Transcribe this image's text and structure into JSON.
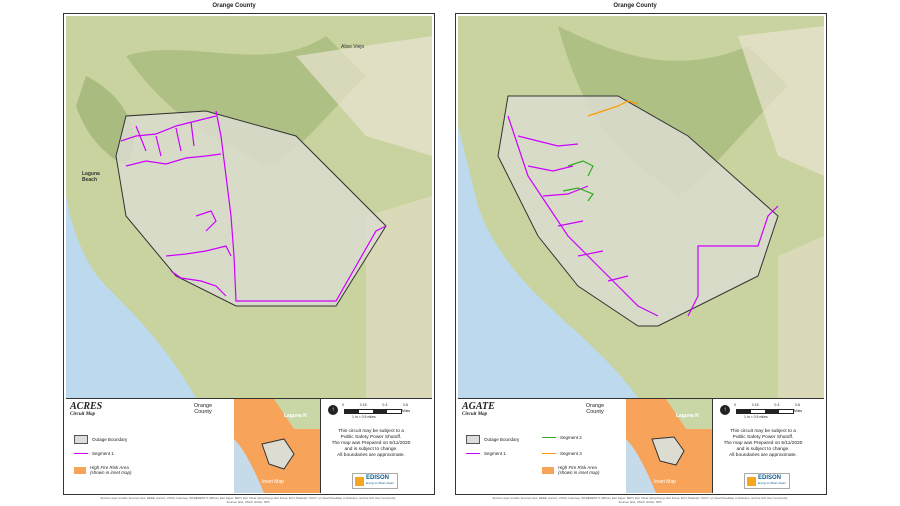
{
  "sheets": [
    {
      "header": "Orange County",
      "circuit": "ACRES",
      "subtitle": "Circuit Map",
      "county": "Orange\nCounty",
      "legend": [
        {
          "type": "box",
          "label": "Outage Boundary"
        },
        {
          "type": "line",
          "label": "Segment 1",
          "color": "#cc00ff"
        },
        {
          "type": "fire",
          "label": "High Fire Risk Area\n(shown in inset map)"
        }
      ],
      "map_labels": [
        "Aliso Viejo",
        "Laguna\nBeach"
      ],
      "inset_label": "Inset Map",
      "inset_town": "Laguna N",
      "scale": {
        "ticks": [
          "0",
          "0.15",
          "0.3",
          "0.6"
        ],
        "text": "1 in = 0.5 miles",
        "unit": "Miles"
      },
      "notice": "This circuit may be subject to a\nPublic Safety Power Shutoff.\nThe map was Prepared on 5/11/2020\nand is subject to change.\nAll boundaries are approximate.",
      "logo": {
        "name": "EDISON",
        "sub": "Energy for What's Ahead"
      },
      "credits": "Service Layer Credits: Sources: Esri, HERE, Garmin, USGS, Intermap, INCREMENT P, NRCan, Esri Japan, METI, Esri China (Hong Kong), Esri Korea, Esri (Thailand), NGCC, (c) OpenStreetMap contributors, and the GIS User Community\nSources: Esri, USGS, NOAA, NPS"
    },
    {
      "header": "Orange County",
      "circuit": "AGATE",
      "subtitle": "Circuit Map",
      "county": "Orange\nCounty",
      "legend": [
        {
          "type": "box",
          "label": "Outage Boundary"
        },
        {
          "type": "line",
          "label": "Segment 1",
          "color": "#cc00ff"
        },
        {
          "type": "line",
          "label": "Segment 2",
          "color": "#33aa22"
        },
        {
          "type": "line",
          "label": "Segment 3",
          "color": "#ff9900"
        },
        {
          "type": "fire",
          "label": "High Fire Risk Area\n(shown in inset map)"
        }
      ],
      "map_labels": [],
      "inset_label": "Inset Map",
      "inset_town": "Laguna N",
      "scale": {
        "ticks": [
          "0",
          "0.15",
          "0.3",
          "0.6"
        ],
        "text": "1 in = 0.5 miles",
        "unit": "Miles"
      },
      "notice": "This circuit may be subject to a\nPublic Safety Power Shutoff.\nThe map was Prepared on 5/11/2020\nand is subject to change.\nAll boundaries are approximate.",
      "logo": {
        "name": "EDISON",
        "sub": "Energy for What's Ahead"
      },
      "credits": "Service Layer Credits: Sources: Esri, HERE, Garmin, USGS, Intermap, INCREMENT P, NRCan, Esri Japan, METI, Esri China (Hong Kong), Esri Korea, Esri (Thailand), NGCC, (c) OpenStreetMap contributors, and the GIS User Community\nSources: Esri, USGS, NOAA, NPS"
    }
  ],
  "colors": {
    "segment1": "#cc00ff",
    "segment2": "#33aa22",
    "segment3": "#ff9900",
    "fire": "#f7a35a",
    "boundary_fill": "#dcdcd0",
    "water": "#bcd9ee",
    "land": "#c9d6a5"
  }
}
